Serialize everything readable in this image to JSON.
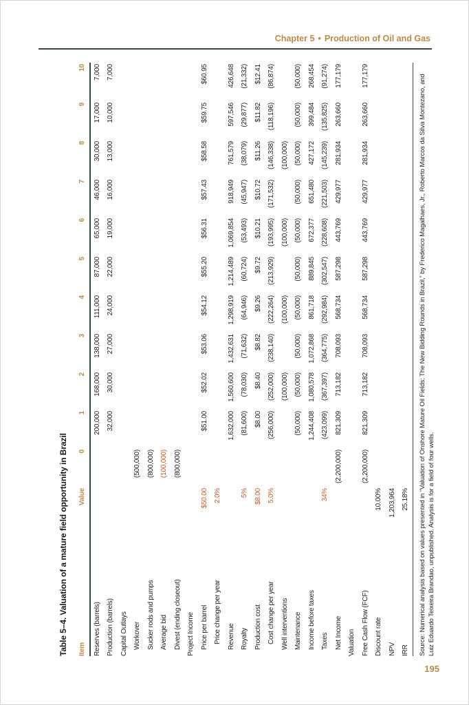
{
  "page": {
    "chapter_label": "Chapter 5",
    "separator": "•",
    "chapter_title": "Production of Oil and Gas",
    "page_number": "195"
  },
  "colors": {
    "accent": "#b98b4b",
    "input": "#c25b2b",
    "rule": "#35414d",
    "text": "#1f1f1f",
    "border": "#d6d6d6"
  },
  "table": {
    "title": "Table 5–4. Valuation of a mature field opportunity in Brazil",
    "columns": [
      "Item",
      "Value",
      "0",
      "1",
      "2",
      "3",
      "4",
      "5",
      "6",
      "7",
      "8",
      "9",
      "10"
    ],
    "rows": [
      {
        "label": "Reserves (barrels)",
        "indent": 0,
        "value": "",
        "cells": [
          "",
          "200,000",
          "168,000",
          "138,000",
          "111,000",
          "87,000",
          "65,000",
          "46,000",
          "30,000",
          "17,000",
          "7,000"
        ]
      },
      {
        "label": "Production (barrels)",
        "indent": 0,
        "value": "",
        "cells": [
          "",
          "32,000",
          "30,000",
          "27,000",
          "24,000",
          "22,000",
          "19,000",
          "16,000",
          "13,000",
          "10,000",
          "7,000"
        ]
      },
      {
        "label": "Capital Outlays",
        "indent": 0,
        "section": true,
        "value": "",
        "cells": [
          "",
          "",
          "",
          "",
          "",
          "",
          "",
          "",
          "",
          "",
          ""
        ]
      },
      {
        "label": "Workover",
        "indent": 1,
        "value": "",
        "cells": [
          "(500,000)",
          "",
          "",
          "",
          "",
          "",
          "",
          "",
          "",
          "",
          ""
        ]
      },
      {
        "label": "Sucker rods and pumps",
        "indent": 1,
        "value": "",
        "cells": [
          "(800,000)",
          "",
          "",
          "",
          "",
          "",
          "",
          "",
          "",
          "",
          ""
        ]
      },
      {
        "label": "Average bid",
        "indent": 1,
        "value": "",
        "input_cols": [
          0
        ],
        "cells": [
          "(100,000)",
          "",
          "",
          "",
          "",
          "",
          "",
          "",
          "",
          "",
          ""
        ]
      },
      {
        "label": "Divest (ending closeout)",
        "indent": 1,
        "value": "",
        "cells": [
          "(800,000)",
          "",
          "",
          "",
          "",
          "",
          "",
          "",
          "",
          "",
          ""
        ]
      },
      {
        "label": "Project Income",
        "indent": 0,
        "section": true,
        "value": "",
        "cells": [
          "",
          "",
          "",
          "",
          "",
          "",
          "",
          "",
          "",
          "",
          ""
        ]
      },
      {
        "label": "Price per barrel",
        "indent": 1,
        "value": "$50.00",
        "value_input": true,
        "cells": [
          "",
          "$51.00",
          "$52.02",
          "$53.06",
          "$54.12",
          "$55.20",
          "$56.31",
          "$57.43",
          "$58.58",
          "$59.75",
          "$60.95"
        ]
      },
      {
        "label": "Price change per year",
        "indent": 2,
        "value": "2.0%",
        "value_input": true,
        "cells": [
          "",
          "",
          "",
          "",
          "",
          "",
          "",
          "",
          "",
          "",
          ""
        ]
      },
      {
        "label": "Revenue",
        "indent": 1,
        "value": "",
        "cells": [
          "",
          "1,632,000",
          "1,560,600",
          "1,432,631",
          "1,298,919",
          "1,214,489",
          "1,069,854",
          "918,949",
          "761,579",
          "597,546",
          "426,648"
        ]
      },
      {
        "label": "Royalty",
        "indent": 1,
        "value": "5%",
        "value_input": true,
        "cells": [
          "",
          "(81,600)",
          "(78,030)",
          "(71,632)",
          "(64,946)",
          "(60,724)",
          "(53,493)",
          "(45,947)",
          "(38,079)",
          "(29,877)",
          "(21,332)"
        ]
      },
      {
        "label": "Production cost",
        "indent": 1,
        "value": "$8.00",
        "value_input": true,
        "cells": [
          "",
          "$8.00",
          "$8.40",
          "$8.82",
          "$9.26",
          "$9.72",
          "$10.21",
          "$10.72",
          "$11.26",
          "$11.82",
          "$12.41"
        ]
      },
      {
        "label": "Cost change per year",
        "indent": 2,
        "value": "5.0%",
        "value_input": true,
        "cells": [
          "",
          "(256,000)",
          "(252,000)",
          "(238,140)",
          "(222,264)",
          "(213,929)",
          "(193,995)",
          "(171,532)",
          "(146,338)",
          "(118,196)",
          "(86,874)"
        ]
      },
      {
        "label": "Well interventions",
        "indent": 1,
        "value": "",
        "cells": [
          "",
          "",
          "(100,000)",
          "",
          "(100,000)",
          "",
          "(100,000)",
          "",
          "(100,000)",
          "",
          ""
        ]
      },
      {
        "label": "Maintenance",
        "indent": 1,
        "value": "",
        "cells": [
          "",
          "(50,000)",
          "(50,000)",
          "(50,000)",
          "(50,000)",
          "(50,000)",
          "(50,000)",
          "(50,000)",
          "(50,000)",
          "(50,000)",
          "(50,000)"
        ]
      },
      {
        "label": "Income before taxes",
        "indent": 1,
        "value": "",
        "cells": [
          "",
          "1,244,408",
          "1,080,578",
          "1,072,868",
          "861,718",
          "889,845",
          "672,377",
          "651,480",
          "427,172",
          "399,484",
          "268,454"
        ]
      },
      {
        "label": "Taxes",
        "indent": 1,
        "value": "34%",
        "value_input": true,
        "cells": [
          "",
          "(423,099)",
          "(367,397)",
          "(364,775)",
          "(292,984)",
          "(302,547)",
          "(228,608)",
          "(221,503)",
          "(145,239)",
          "(135,825)",
          "(91,274)"
        ]
      },
      {
        "label": "Net Income",
        "indent": 1,
        "value": "",
        "cells": [
          "(2,200,000)",
          "821,309",
          "713,182",
          "708,093",
          "568,734",
          "587,298",
          "443,769",
          "429,977",
          "281,934",
          "263,660",
          "177,179"
        ]
      },
      {
        "label": "Valuation",
        "indent": 0,
        "section": true,
        "value": "",
        "cells": [
          "",
          "",
          "",
          "",
          "",
          "",
          "",
          "",
          "",
          "",
          ""
        ]
      },
      {
        "label": "Free Cash Flow (FCF)",
        "indent": 0,
        "value": "",
        "cells": [
          "(2,200,000)",
          "821,309",
          "713,182",
          "708,093",
          "568,734",
          "587,298",
          "443,769",
          "429,977",
          "281,934",
          "263,660",
          "177,179"
        ]
      },
      {
        "label": "Discount rate",
        "indent": 0,
        "value": "10.00%",
        "cells": [
          "",
          "",
          "",
          "",
          "",
          "",
          "",
          "",
          "",
          "",
          ""
        ]
      },
      {
        "label": "NPV",
        "indent": 0,
        "value": "1,203,964",
        "cells": [
          "",
          "",
          "",
          "",
          "",
          "",
          "",
          "",
          "",
          "",
          ""
        ]
      },
      {
        "label": "IRR",
        "indent": 0,
        "value": "25.18%",
        "cells": [
          "",
          "",
          "",
          "",
          "",
          "",
          "",
          "",
          "",
          "",
          ""
        ]
      }
    ],
    "source": "Source: Numerical analysis based on values presented in “Valuation of Onshore Mature Oil Fields: The New Bidding Rounds in Brazil,” by Frederico Magalhaes, Jr., Roberto Marcos da Silva Montezano, and Luiz Eduardo Teixeira Brandao, unpublished.  Analysis is for a field of four wells."
  }
}
